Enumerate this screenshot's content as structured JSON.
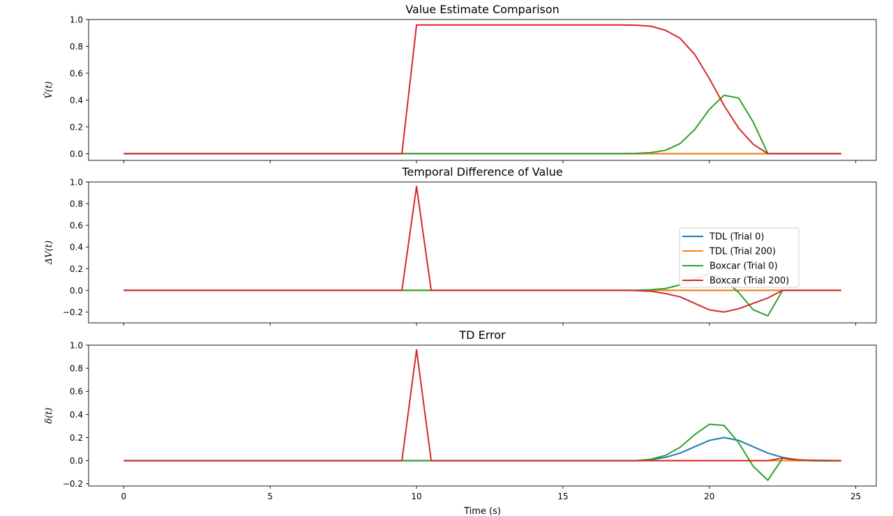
{
  "chart_data": [
    {
      "type": "line",
      "title": "Value Estimate Comparison",
      "ylabel": "V̂(t)",
      "xlabel": "",
      "xlim": [
        -1.2,
        25.7
      ],
      "ylim": [
        -0.05,
        1.0
      ],
      "yticks": [
        0.0,
        0.2,
        0.4,
        0.6,
        0.8,
        1.0
      ],
      "ytick_labels": [
        "0.0",
        "0.2",
        "0.4",
        "0.6",
        "0.8",
        "1.0"
      ],
      "xticks": [
        0,
        5,
        10,
        15,
        20,
        25
      ],
      "show_xtick_labels": false,
      "series": [
        {
          "name": "TDL (Trial 0)",
          "color": "#1f77b4",
          "x": [
            0,
            24.5
          ],
          "y": [
            0,
            0
          ]
        },
        {
          "name": "TDL (Trial 200)",
          "color": "#ff7f0e",
          "x": [
            0,
            24.5
          ],
          "y": [
            0,
            0
          ]
        },
        {
          "name": "Boxcar (Trial 0)",
          "color": "#2ca02c",
          "x": [
            0,
            17,
            17.5,
            18,
            18.5,
            19,
            19.5,
            20,
            20.5,
            21,
            21.5,
            22,
            22.5,
            24.5
          ],
          "y": [
            0,
            0,
            0.002,
            0.008,
            0.025,
            0.075,
            0.18,
            0.33,
            0.435,
            0.415,
            0.235,
            0,
            0,
            0
          ]
        },
        {
          "name": "Boxcar (Trial 200)",
          "color": "#d62728",
          "x": [
            0,
            9.5,
            10,
            17,
            17.5,
            18,
            18.5,
            19,
            19.5,
            20,
            20.5,
            21,
            21.5,
            22,
            22.5,
            24.5
          ],
          "y": [
            0,
            0,
            0.96,
            0.96,
            0.958,
            0.95,
            0.92,
            0.86,
            0.74,
            0.56,
            0.36,
            0.19,
            0.07,
            0,
            0,
            0
          ]
        }
      ]
    },
    {
      "type": "line",
      "title": "Temporal Difference of Value",
      "ylabel": "ΔV(t)",
      "xlabel": "",
      "xlim": [
        -1.2,
        25.7
      ],
      "ylim": [
        -0.3,
        1.0
      ],
      "yticks": [
        -0.2,
        0.0,
        0.2,
        0.4,
        0.6,
        0.8,
        1.0
      ],
      "ytick_labels": [
        "−0.2",
        "0.0",
        "0.2",
        "0.4",
        "0.6",
        "0.8",
        "1.0"
      ],
      "xticks": [
        0,
        5,
        10,
        15,
        20,
        25
      ],
      "show_xtick_labels": false,
      "legend": {
        "position": "center-right",
        "entries": [
          {
            "label": "TDL (Trial 0)",
            "color": "#1f77b4"
          },
          {
            "label": "TDL (Trial 200)",
            "color": "#ff7f0e"
          },
          {
            "label": "Boxcar (Trial 0)",
            "color": "#2ca02c"
          },
          {
            "label": "Boxcar (Trial 200)",
            "color": "#d62728"
          }
        ]
      },
      "series": [
        {
          "name": "TDL (Trial 0)",
          "color": "#1f77b4",
          "x": [
            0,
            24.5
          ],
          "y": [
            0,
            0
          ]
        },
        {
          "name": "TDL (Trial 200)",
          "color": "#ff7f0e",
          "x": [
            0,
            24.5
          ],
          "y": [
            0,
            0
          ]
        },
        {
          "name": "Boxcar (Trial 0)",
          "color": "#2ca02c",
          "x": [
            0,
            17.5,
            18,
            18.5,
            19,
            19.5,
            20,
            20.5,
            21,
            21.5,
            22,
            22.5,
            24.5
          ],
          "y": [
            0,
            0,
            0.006,
            0.017,
            0.05,
            0.105,
            0.15,
            0.105,
            -0.02,
            -0.18,
            -0.235,
            0,
            0
          ]
        },
        {
          "name": "Boxcar (Trial 200)",
          "color": "#d62728",
          "x": [
            0,
            9.5,
            10,
            10.5,
            17,
            17.5,
            18,
            18.5,
            19,
            19.5,
            20,
            20.5,
            21,
            21.5,
            22,
            22.5,
            24.5
          ],
          "y": [
            0,
            0,
            0.96,
            0,
            0,
            -0.002,
            -0.008,
            -0.03,
            -0.06,
            -0.12,
            -0.18,
            -0.2,
            -0.17,
            -0.12,
            -0.07,
            0,
            0
          ]
        }
      ]
    },
    {
      "type": "line",
      "title": "TD Error",
      "ylabel": "δ(t)",
      "xlabel": "Time (s)",
      "xlim": [
        -1.2,
        25.7
      ],
      "ylim": [
        -0.22,
        1.0
      ],
      "yticks": [
        -0.2,
        0.0,
        0.2,
        0.4,
        0.6,
        0.8,
        1.0
      ],
      "ytick_labels": [
        "−0.2",
        "0.0",
        "0.2",
        "0.4",
        "0.6",
        "0.8",
        "1.0"
      ],
      "xticks": [
        0,
        5,
        10,
        15,
        20,
        25
      ],
      "xtick_labels": [
        "0",
        "5",
        "10",
        "15",
        "20",
        "25"
      ],
      "show_xtick_labels": true,
      "series": [
        {
          "name": "TDL (Trial 0)",
          "color": "#1f77b4",
          "x": [
            0,
            17.5,
            18,
            18.5,
            19,
            19.5,
            20,
            20.5,
            21,
            21.5,
            22,
            22.5,
            23,
            23.5,
            24.5
          ],
          "y": [
            0,
            0,
            0.008,
            0.028,
            0.065,
            0.12,
            0.175,
            0.2,
            0.175,
            0.12,
            0.065,
            0.028,
            0.008,
            0,
            0
          ]
        },
        {
          "name": "TDL (Trial 200)",
          "color": "#ff7f0e",
          "x": [
            0,
            24.5
          ],
          "y": [
            0,
            0
          ]
        },
        {
          "name": "Boxcar (Trial 0)",
          "color": "#2ca02c",
          "x": [
            0,
            17.5,
            18,
            18.5,
            19,
            19.5,
            20,
            20.5,
            21,
            21.5,
            22,
            22.5,
            23,
            23.5,
            24,
            24.5
          ],
          "y": [
            0,
            0,
            0.012,
            0.045,
            0.115,
            0.225,
            0.315,
            0.305,
            0.155,
            -0.05,
            -0.17,
            0.02,
            0.005,
            0,
            -0.003,
            0
          ]
        },
        {
          "name": "Boxcar (Trial 200)",
          "color": "#d62728",
          "x": [
            0,
            9.5,
            10,
            10.5,
            22,
            22.5,
            23,
            24.5
          ],
          "y": [
            0,
            0,
            0.96,
            0,
            0,
            0.022,
            0.005,
            0
          ]
        }
      ]
    }
  ]
}
